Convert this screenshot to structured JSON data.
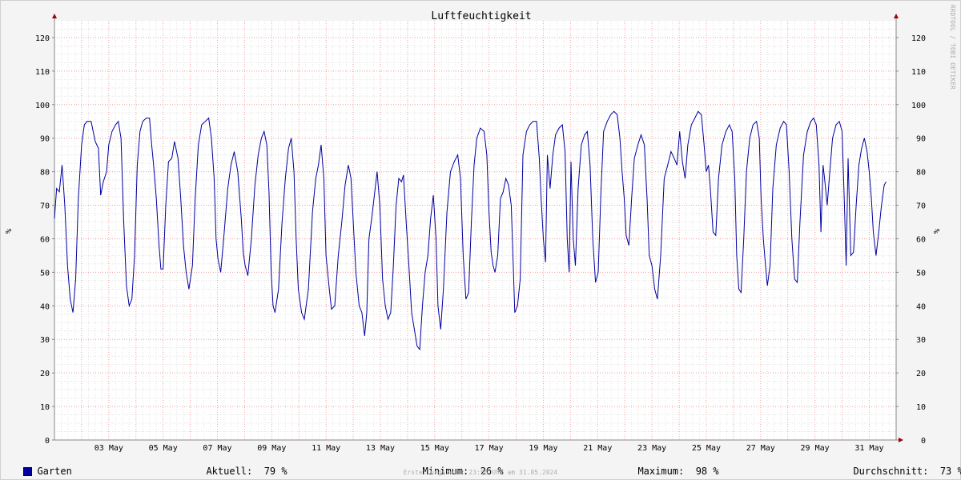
{
  "watermark": "RRDTOOL / TOBI OETIKER",
  "chart_data": {
    "type": "line",
    "title": "Luftfeuchtigkeit",
    "ylabel": "%",
    "ylim": [
      0,
      125
    ],
    "yticks": [
      0,
      10,
      20,
      30,
      40,
      50,
      60,
      70,
      80,
      90,
      100,
      110,
      120
    ],
    "y_axis_both_sides": true,
    "grid": true,
    "legend_position": "bottom-left",
    "x_range_days": [
      1.0,
      31.99
    ],
    "x_ticks": [
      {
        "day": 3,
        "label": "03 May"
      },
      {
        "day": 5,
        "label": "05 May"
      },
      {
        "day": 7,
        "label": "07 May"
      },
      {
        "day": 9,
        "label": "09 May"
      },
      {
        "day": 11,
        "label": "11 May"
      },
      {
        "day": 13,
        "label": "13 May"
      },
      {
        "day": 15,
        "label": "15 May"
      },
      {
        "day": 17,
        "label": "17 May"
      },
      {
        "day": 19,
        "label": "19 May"
      },
      {
        "day": 21,
        "label": "21 May"
      },
      {
        "day": 23,
        "label": "23 May"
      },
      {
        "day": 25,
        "label": "25 May"
      },
      {
        "day": 27,
        "label": "27 May"
      },
      {
        "day": 29,
        "label": "29 May"
      },
      {
        "day": 31,
        "label": "31 May"
      }
    ],
    "series": [
      {
        "name": "Garten",
        "color": "#0000a0",
        "points": [
          [
            1.0,
            66
          ],
          [
            1.08,
            75
          ],
          [
            1.18,
            74
          ],
          [
            1.28,
            82
          ],
          [
            1.38,
            70
          ],
          [
            1.48,
            52
          ],
          [
            1.58,
            42
          ],
          [
            1.68,
            38
          ],
          [
            1.78,
            48
          ],
          [
            1.88,
            72
          ],
          [
            2.0,
            88
          ],
          [
            2.1,
            94
          ],
          [
            2.2,
            95
          ],
          [
            2.35,
            95
          ],
          [
            2.5,
            89
          ],
          [
            2.62,
            87
          ],
          [
            2.7,
            73
          ],
          [
            2.8,
            77
          ],
          [
            2.92,
            80
          ],
          [
            3.0,
            88
          ],
          [
            3.12,
            92
          ],
          [
            3.25,
            94
          ],
          [
            3.35,
            95
          ],
          [
            3.45,
            90
          ],
          [
            3.55,
            65
          ],
          [
            3.65,
            46
          ],
          [
            3.75,
            40
          ],
          [
            3.85,
            42
          ],
          [
            3.95,
            55
          ],
          [
            4.05,
            82
          ],
          [
            4.15,
            92
          ],
          [
            4.25,
            95
          ],
          [
            4.38,
            96
          ],
          [
            4.5,
            96
          ],
          [
            4.58,
            88
          ],
          [
            4.65,
            82
          ],
          [
            4.75,
            72
          ],
          [
            4.85,
            58
          ],
          [
            4.92,
            51
          ],
          [
            5.0,
            51
          ],
          [
            5.1,
            70
          ],
          [
            5.2,
            83
          ],
          [
            5.32,
            84
          ],
          [
            5.42,
            89
          ],
          [
            5.55,
            84
          ],
          [
            5.65,
            72
          ],
          [
            5.75,
            58
          ],
          [
            5.85,
            50
          ],
          [
            5.95,
            45
          ],
          [
            6.08,
            52
          ],
          [
            6.18,
            72
          ],
          [
            6.3,
            88
          ],
          [
            6.42,
            94
          ],
          [
            6.55,
            95
          ],
          [
            6.68,
            96
          ],
          [
            6.78,
            90
          ],
          [
            6.88,
            78
          ],
          [
            6.95,
            60
          ],
          [
            7.02,
            54
          ],
          [
            7.12,
            50
          ],
          [
            7.25,
            62
          ],
          [
            7.38,
            75
          ],
          [
            7.5,
            82
          ],
          [
            7.62,
            86
          ],
          [
            7.75,
            80
          ],
          [
            7.88,
            66
          ],
          [
            7.95,
            56
          ],
          [
            8.02,
            52
          ],
          [
            8.12,
            49
          ],
          [
            8.25,
            60
          ],
          [
            8.38,
            76
          ],
          [
            8.5,
            85
          ],
          [
            8.62,
            90
          ],
          [
            8.72,
            92
          ],
          [
            8.82,
            88
          ],
          [
            8.9,
            74
          ],
          [
            8.98,
            50
          ],
          [
            9.05,
            40
          ],
          [
            9.12,
            38
          ],
          [
            9.25,
            45
          ],
          [
            9.38,
            65
          ],
          [
            9.5,
            78
          ],
          [
            9.62,
            87
          ],
          [
            9.72,
            90
          ],
          [
            9.82,
            80
          ],
          [
            9.9,
            60
          ],
          [
            9.98,
            45
          ],
          [
            10.1,
            38
          ],
          [
            10.2,
            36
          ],
          [
            10.35,
            45
          ],
          [
            10.5,
            68
          ],
          [
            10.62,
            78
          ],
          [
            10.72,
            82
          ],
          [
            10.82,
            88
          ],
          [
            10.92,
            78
          ],
          [
            11.0,
            55
          ],
          [
            11.12,
            45
          ],
          [
            11.2,
            39
          ],
          [
            11.32,
            40
          ],
          [
            11.45,
            55
          ],
          [
            11.58,
            65
          ],
          [
            11.7,
            76
          ],
          [
            11.82,
            82
          ],
          [
            11.92,
            78
          ],
          [
            12.0,
            65
          ],
          [
            12.1,
            50
          ],
          [
            12.22,
            40
          ],
          [
            12.32,
            38
          ],
          [
            12.42,
            31
          ],
          [
            12.5,
            38
          ],
          [
            12.58,
            60
          ],
          [
            12.68,
            66
          ],
          [
            12.78,
            73
          ],
          [
            12.88,
            80
          ],
          [
            12.98,
            70
          ],
          [
            13.08,
            48
          ],
          [
            13.18,
            40
          ],
          [
            13.28,
            36
          ],
          [
            13.38,
            38
          ],
          [
            13.48,
            52
          ],
          [
            13.58,
            70
          ],
          [
            13.68,
            78
          ],
          [
            13.78,
            77
          ],
          [
            13.85,
            79
          ],
          [
            13.95,
            65
          ],
          [
            14.05,
            52
          ],
          [
            14.15,
            38
          ],
          [
            14.25,
            33
          ],
          [
            14.35,
            28
          ],
          [
            14.45,
            27
          ],
          [
            14.55,
            40
          ],
          [
            14.65,
            50
          ],
          [
            14.75,
            55
          ],
          [
            14.85,
            66
          ],
          [
            14.95,
            73
          ],
          [
            15.05,
            60
          ],
          [
            15.12,
            40
          ],
          [
            15.22,
            33
          ],
          [
            15.32,
            45
          ],
          [
            15.45,
            68
          ],
          [
            15.58,
            80
          ],
          [
            15.72,
            83
          ],
          [
            15.85,
            85
          ],
          [
            15.95,
            78
          ],
          [
            16.05,
            55
          ],
          [
            16.15,
            42
          ],
          [
            16.25,
            44
          ],
          [
            16.35,
            65
          ],
          [
            16.45,
            82
          ],
          [
            16.55,
            90
          ],
          [
            16.68,
            93
          ],
          [
            16.82,
            92
          ],
          [
            16.92,
            85
          ],
          [
            17.0,
            68
          ],
          [
            17.08,
            56
          ],
          [
            17.15,
            52
          ],
          [
            17.22,
            50
          ],
          [
            17.32,
            55
          ],
          [
            17.42,
            72
          ],
          [
            17.52,
            74
          ],
          [
            17.62,
            78
          ],
          [
            17.72,
            76
          ],
          [
            17.82,
            70
          ],
          [
            17.88,
            55
          ],
          [
            17.95,
            38
          ],
          [
            18.05,
            40
          ],
          [
            18.15,
            48
          ],
          [
            18.25,
            85
          ],
          [
            18.38,
            92
          ],
          [
            18.5,
            94
          ],
          [
            18.62,
            95
          ],
          [
            18.75,
            95
          ],
          [
            18.85,
            84
          ],
          [
            18.92,
            72
          ],
          [
            19.0,
            60
          ],
          [
            19.08,
            53
          ],
          [
            19.15,
            85
          ],
          [
            19.25,
            75
          ],
          [
            19.35,
            85
          ],
          [
            19.45,
            91
          ],
          [
            19.58,
            93
          ],
          [
            19.7,
            94
          ],
          [
            19.8,
            86
          ],
          [
            19.88,
            60
          ],
          [
            19.95,
            50
          ],
          [
            20.02,
            83
          ],
          [
            20.1,
            60
          ],
          [
            20.18,
            52
          ],
          [
            20.28,
            75
          ],
          [
            20.4,
            88
          ],
          [
            20.52,
            91
          ],
          [
            20.62,
            92
          ],
          [
            20.72,
            82
          ],
          [
            20.82,
            60
          ],
          [
            20.92,
            47
          ],
          [
            21.02,
            50
          ],
          [
            21.12,
            74
          ],
          [
            21.22,
            92
          ],
          [
            21.35,
            95
          ],
          [
            21.48,
            97
          ],
          [
            21.6,
            98
          ],
          [
            21.72,
            97
          ],
          [
            21.82,
            90
          ],
          [
            21.9,
            80
          ],
          [
            21.98,
            72
          ],
          [
            22.05,
            61
          ],
          [
            22.15,
            58
          ],
          [
            22.25,
            72
          ],
          [
            22.35,
            84
          ],
          [
            22.48,
            88
          ],
          [
            22.6,
            91
          ],
          [
            22.72,
            88
          ],
          [
            22.82,
            72
          ],
          [
            22.9,
            55
          ],
          [
            23.0,
            52
          ],
          [
            23.1,
            45
          ],
          [
            23.2,
            42
          ],
          [
            23.32,
            55
          ],
          [
            23.45,
            78
          ],
          [
            23.58,
            82
          ],
          [
            23.7,
            86
          ],
          [
            23.82,
            84
          ],
          [
            23.92,
            82
          ],
          [
            24.02,
            92
          ],
          [
            24.12,
            83
          ],
          [
            24.22,
            78
          ],
          [
            24.32,
            88
          ],
          [
            24.45,
            94
          ],
          [
            24.58,
            96
          ],
          [
            24.7,
            98
          ],
          [
            24.82,
            97
          ],
          [
            24.92,
            88
          ],
          [
            25.0,
            80
          ],
          [
            25.08,
            82
          ],
          [
            25.15,
            75
          ],
          [
            25.25,
            62
          ],
          [
            25.35,
            61
          ],
          [
            25.45,
            78
          ],
          [
            25.58,
            88
          ],
          [
            25.72,
            92
          ],
          [
            25.85,
            94
          ],
          [
            25.95,
            92
          ],
          [
            26.05,
            78
          ],
          [
            26.12,
            55
          ],
          [
            26.2,
            45
          ],
          [
            26.28,
            44
          ],
          [
            26.38,
            60
          ],
          [
            26.48,
            80
          ],
          [
            26.6,
            90
          ],
          [
            26.72,
            94
          ],
          [
            26.85,
            95
          ],
          [
            26.95,
            90
          ],
          [
            27.02,
            72
          ],
          [
            27.1,
            60
          ],
          [
            27.18,
            52
          ],
          [
            27.25,
            46
          ],
          [
            27.35,
            52
          ],
          [
            27.45,
            75
          ],
          [
            27.58,
            88
          ],
          [
            27.72,
            93
          ],
          [
            27.85,
            95
          ],
          [
            27.95,
            94
          ],
          [
            28.05,
            80
          ],
          [
            28.15,
            60
          ],
          [
            28.25,
            48
          ],
          [
            28.35,
            47
          ],
          [
            28.45,
            65
          ],
          [
            28.58,
            85
          ],
          [
            28.72,
            92
          ],
          [
            28.85,
            95
          ],
          [
            28.95,
            96
          ],
          [
            29.05,
            94
          ],
          [
            29.15,
            82
          ],
          [
            29.22,
            62
          ],
          [
            29.3,
            82
          ],
          [
            29.38,
            76
          ],
          [
            29.45,
            70
          ],
          [
            29.55,
            80
          ],
          [
            29.65,
            90
          ],
          [
            29.78,
            94
          ],
          [
            29.9,
            95
          ],
          [
            30.0,
            92
          ],
          [
            30.08,
            72
          ],
          [
            30.15,
            52
          ],
          [
            30.22,
            84
          ],
          [
            30.32,
            55
          ],
          [
            30.42,
            56
          ],
          [
            30.52,
            70
          ],
          [
            30.62,
            82
          ],
          [
            30.72,
            87
          ],
          [
            30.82,
            90
          ],
          [
            30.92,
            86
          ],
          [
            31.0,
            80
          ],
          [
            31.08,
            72
          ],
          [
            31.15,
            62
          ],
          [
            31.25,
            55
          ],
          [
            31.35,
            62
          ],
          [
            31.45,
            70
          ],
          [
            31.55,
            76
          ],
          [
            31.62,
            77
          ]
        ]
      }
    ]
  },
  "legend": {
    "series_name": "Garten",
    "aktuell_label": "Aktuell:",
    "aktuell_value": "79 %",
    "minimum_label": "Minimum:",
    "minimum_value": "26 %",
    "maximum_label": "Maximum:",
    "maximum_value": "98 %",
    "avg_label": "Durchschnitt:",
    "avg_value": "73 %"
  },
  "footer": {
    "created": "Erstellungszeit: 23:58 Uhr am 31.05.2024"
  }
}
